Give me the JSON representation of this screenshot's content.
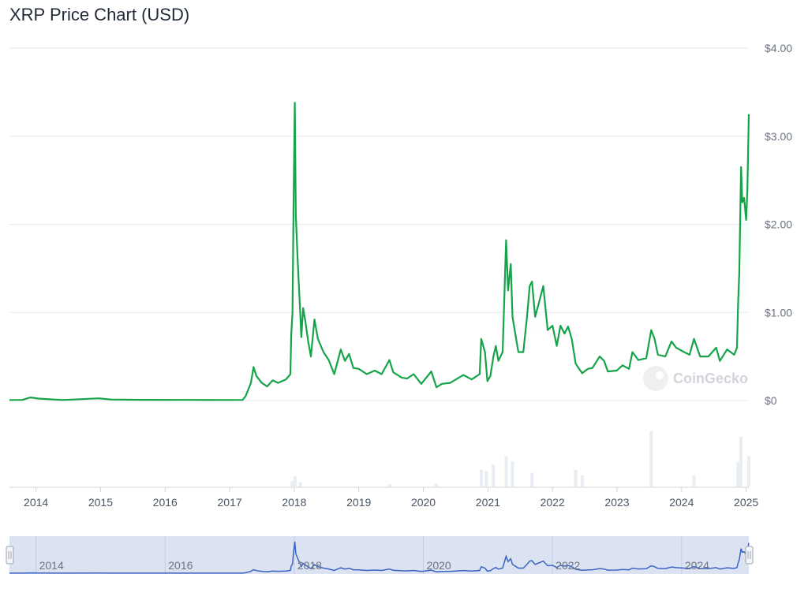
{
  "page": {
    "title": "XRP Price Chart (USD)",
    "watermark": "CoinGecko"
  },
  "colors": {
    "line": "#16a34a",
    "area_top": "#dcfce7",
    "grid": "#e5e7eb",
    "navigator_fill": "#dbe3f3",
    "navigator_line": "#3b63c4",
    "volume": "#e8ecf3"
  },
  "chart_data": {
    "type": "line",
    "title": "XRP Price Chart (USD)",
    "xlabel": "",
    "ylabel": "",
    "ylim": [
      0,
      4
    ],
    "y_ticks": [
      0,
      1,
      2,
      3,
      4
    ],
    "y_tick_labels": [
      "$0",
      "$1.00",
      "$2.00",
      "$3.00",
      "$4.00"
    ],
    "x_tick_labels": [
      "2014",
      "2015",
      "2016",
      "2017",
      "2018",
      "2019",
      "2020",
      "2021",
      "2022",
      "2023",
      "2024",
      "2025"
    ],
    "navigator_tick_labels": [
      "2014",
      "2016",
      "2018",
      "2020",
      "2022",
      "2024"
    ],
    "grid": true,
    "legend": "none",
    "series": [
      {
        "points": [
          [
            "2013-08-04",
            0.006
          ],
          [
            "2013-10-15",
            0.007
          ],
          [
            "2013-12-01",
            0.035
          ],
          [
            "2014-01-15",
            0.022
          ],
          [
            "2014-06-01",
            0.006
          ],
          [
            "2014-12-22",
            0.025
          ],
          [
            "2015-03-01",
            0.012
          ],
          [
            "2015-09-01",
            0.008
          ],
          [
            "2016-06-01",
            0.007
          ],
          [
            "2017-01-01",
            0.006
          ],
          [
            "2017-03-15",
            0.007
          ],
          [
            "2017-04-01",
            0.05
          ],
          [
            "2017-05-01",
            0.2
          ],
          [
            "2017-05-16",
            0.38
          ],
          [
            "2017-06-01",
            0.28
          ],
          [
            "2017-07-01",
            0.2
          ],
          [
            "2017-08-01",
            0.16
          ],
          [
            "2017-09-01",
            0.23
          ],
          [
            "2017-10-01",
            0.2
          ],
          [
            "2017-11-15",
            0.24
          ],
          [
            "2017-12-10",
            0.3
          ],
          [
            "2017-12-15",
            0.75
          ],
          [
            "2017-12-22",
            1.0
          ],
          [
            "2017-12-28",
            2.2
          ],
          [
            "2018-01-04",
            3.38
          ],
          [
            "2018-01-10",
            2.1
          ],
          [
            "2018-01-20",
            1.6
          ],
          [
            "2018-02-01",
            1.1
          ],
          [
            "2018-02-10",
            0.72
          ],
          [
            "2018-02-20",
            1.05
          ],
          [
            "2018-03-05",
            0.9
          ],
          [
            "2018-03-20",
            0.68
          ],
          [
            "2018-04-05",
            0.5
          ],
          [
            "2018-04-25",
            0.92
          ],
          [
            "2018-05-15",
            0.7
          ],
          [
            "2018-06-15",
            0.55
          ],
          [
            "2018-07-15",
            0.46
          ],
          [
            "2018-08-15",
            0.3
          ],
          [
            "2018-09-21",
            0.58
          ],
          [
            "2018-10-15",
            0.45
          ],
          [
            "2018-11-07",
            0.53
          ],
          [
            "2018-12-01",
            0.37
          ],
          [
            "2019-01-01",
            0.36
          ],
          [
            "2019-02-15",
            0.3
          ],
          [
            "2019-04-01",
            0.34
          ],
          [
            "2019-05-10",
            0.3
          ],
          [
            "2019-06-23",
            0.46
          ],
          [
            "2019-07-15",
            0.32
          ],
          [
            "2019-09-01",
            0.26
          ],
          [
            "2019-10-01",
            0.25
          ],
          [
            "2019-11-07",
            0.3
          ],
          [
            "2019-12-20",
            0.19
          ],
          [
            "2020-02-15",
            0.33
          ],
          [
            "2020-03-15",
            0.15
          ],
          [
            "2020-04-15",
            0.19
          ],
          [
            "2020-06-01",
            0.2
          ],
          [
            "2020-08-15",
            0.29
          ],
          [
            "2020-10-01",
            0.24
          ],
          [
            "2020-11-15",
            0.3
          ],
          [
            "2020-11-24",
            0.7
          ],
          [
            "2020-12-15",
            0.55
          ],
          [
            "2020-12-29",
            0.22
          ],
          [
            "2021-01-15",
            0.28
          ],
          [
            "2021-02-01",
            0.5
          ],
          [
            "2021-02-15",
            0.62
          ],
          [
            "2021-03-01",
            0.45
          ],
          [
            "2021-03-25",
            0.55
          ],
          [
            "2021-04-14",
            1.82
          ],
          [
            "2021-04-25",
            1.25
          ],
          [
            "2021-05-10",
            1.55
          ],
          [
            "2021-05-20",
            0.95
          ],
          [
            "2021-06-22",
            0.55
          ],
          [
            "2021-07-20",
            0.55
          ],
          [
            "2021-08-10",
            0.95
          ],
          [
            "2021-08-25",
            1.3
          ],
          [
            "2021-09-07",
            1.35
          ],
          [
            "2021-09-25",
            0.95
          ],
          [
            "2021-10-15",
            1.1
          ],
          [
            "2021-11-10",
            1.3
          ],
          [
            "2021-12-05",
            0.8
          ],
          [
            "2022-01-01",
            0.85
          ],
          [
            "2022-01-25",
            0.62
          ],
          [
            "2022-02-15",
            0.85
          ],
          [
            "2022-03-10",
            0.76
          ],
          [
            "2022-03-30",
            0.84
          ],
          [
            "2022-04-20",
            0.7
          ],
          [
            "2022-05-12",
            0.42
          ],
          [
            "2022-06-18",
            0.31
          ],
          [
            "2022-07-20",
            0.36
          ],
          [
            "2022-08-15",
            0.37
          ],
          [
            "2022-09-25",
            0.5
          ],
          [
            "2022-10-20",
            0.45
          ],
          [
            "2022-11-10",
            0.33
          ],
          [
            "2022-12-30",
            0.34
          ],
          [
            "2023-02-01",
            0.4
          ],
          [
            "2023-03-10",
            0.36
          ],
          [
            "2023-03-29",
            0.55
          ],
          [
            "2023-05-01",
            0.46
          ],
          [
            "2023-06-15",
            0.48
          ],
          [
            "2023-07-13",
            0.8
          ],
          [
            "2023-08-01",
            0.7
          ],
          [
            "2023-08-20",
            0.52
          ],
          [
            "2023-10-01",
            0.5
          ],
          [
            "2023-11-05",
            0.67
          ],
          [
            "2023-12-01",
            0.6
          ],
          [
            "2024-01-15",
            0.55
          ],
          [
            "2024-02-15",
            0.52
          ],
          [
            "2024-03-11",
            0.7
          ],
          [
            "2024-04-15",
            0.5
          ],
          [
            "2024-06-01",
            0.5
          ],
          [
            "2024-07-15",
            0.6
          ],
          [
            "2024-08-05",
            0.45
          ],
          [
            "2024-09-15",
            0.58
          ],
          [
            "2024-10-25",
            0.52
          ],
          [
            "2024-11-10",
            0.6
          ],
          [
            "2024-11-16",
            1.1
          ],
          [
            "2024-11-23",
            1.45
          ],
          [
            "2024-12-03",
            2.65
          ],
          [
            "2024-12-10",
            2.25
          ],
          [
            "2024-12-20",
            2.3
          ],
          [
            "2025-01-01",
            2.05
          ],
          [
            "2025-01-08",
            2.4
          ],
          [
            "2025-01-16",
            3.25
          ]
        ]
      }
    ],
    "volume": [
      [
        "2017-12-20",
        0.1
      ],
      [
        "2018-01-05",
        0.18
      ],
      [
        "2018-02-05",
        0.08
      ],
      [
        "2019-06-25",
        0.04
      ],
      [
        "2020-03-13",
        0.05
      ],
      [
        "2020-11-25",
        0.3
      ],
      [
        "2020-12-23",
        0.28
      ],
      [
        "2021-02-01",
        0.4
      ],
      [
        "2021-04-14",
        0.55
      ],
      [
        "2021-05-19",
        0.45
      ],
      [
        "2021-09-07",
        0.25
      ],
      [
        "2022-05-12",
        0.3
      ],
      [
        "2022-06-18",
        0.2
      ],
      [
        "2023-07-13",
        1.0
      ],
      [
        "2024-03-11",
        0.2
      ],
      [
        "2024-11-16",
        0.45
      ],
      [
        "2024-12-02",
        0.9
      ],
      [
        "2025-01-16",
        0.55
      ]
    ]
  }
}
